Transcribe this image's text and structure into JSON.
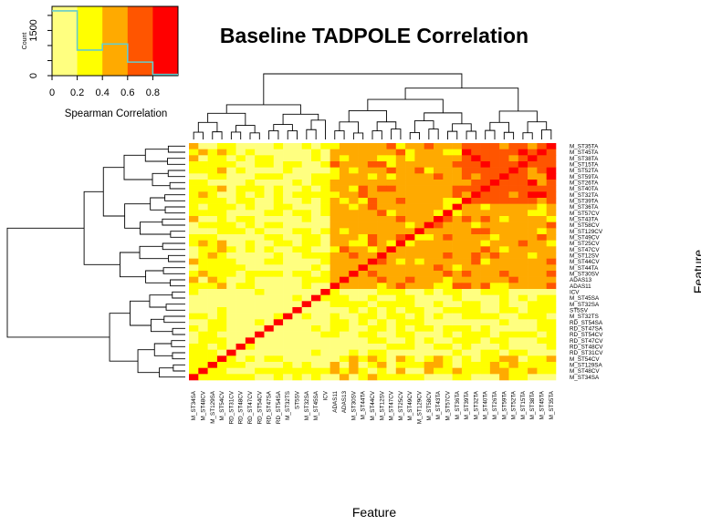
{
  "chart_data": {
    "type": "heatmap",
    "title": "Baseline TADPOLE Correlation",
    "xlabel": "Feature",
    "ylabel": "Feature",
    "column_tick_labels": [
      "M_ST34SA",
      "M_ST48CV",
      "M_ST129SA",
      "M_ST54CV",
      "RD_ST31CV",
      "RD_ST48CV",
      "RD_ST47CV",
      "RD_ST54CV",
      "RD_ST47SA",
      "RD_ST54SA",
      "M_ST32TS",
      "ST5SV",
      "M_ST32SA",
      "M_ST45SA",
      "ICV",
      "ADAS11",
      "ADAS13",
      "M_ST30SV",
      "M_ST44TA",
      "M_ST44CV",
      "M_ST12SV",
      "M_ST47CV",
      "M_ST25CV",
      "M_ST49CV",
      "M_ST129CV",
      "M_ST58CV",
      "M_ST43TA",
      "M_ST57CV",
      "M_ST36TA",
      "M_ST39TA",
      "M_ST32TA",
      "M_ST40TA",
      "M_ST26TA",
      "M_ST59TA",
      "M_ST52TA",
      "M_ST15TA",
      "M_ST38TA",
      "M_ST45TA",
      "M_ST35TA"
    ],
    "row_tick_labels": [
      "M_ST35TA",
      "M_ST45TA",
      "M_ST38TA",
      "M_ST15TA",
      "M_ST52TA",
      "M_ST59TA",
      "M_ST26TA",
      "M_ST40TA",
      "M_ST32TA",
      "M_ST39TA",
      "M_ST36TA",
      "M_ST57CV",
      "M_ST43TA",
      "M_ST58CV",
      "M_ST129CV",
      "M_ST49CV",
      "M_ST25CV",
      "M_ST47CV",
      "M_ST12SV",
      "M_ST44CV",
      "M_ST44TA",
      "M_ST30SV",
      "ADAS13",
      "ADAS11",
      "ICV",
      "M_ST45SA",
      "M_ST32SA",
      "ST5SV",
      "M_ST32TS",
      "RD_ST54SA",
      "RD_ST47SA",
      "RD_ST54CV",
      "RD_ST47CV",
      "RD_ST48CV",
      "RD_ST31CV",
      "M_ST54CV",
      "M_ST129SA",
      "M_ST48CV",
      "M_ST34SA"
    ],
    "legend": {
      "title": "Spearman Correlation",
      "count_label": "Count",
      "x_ticks": [
        "0",
        "0.2",
        "0.4",
        "0.6",
        "0.8"
      ],
      "y_ticks": [
        "0",
        "1500"
      ],
      "bins": [
        {
          "from": 0.0,
          "to": 0.2,
          "color": "#ffff80"
        },
        {
          "from": 0.2,
          "to": 0.4,
          "color": "#ffff00"
        },
        {
          "from": 0.4,
          "to": 0.6,
          "color": "#ffaa00"
        },
        {
          "from": 0.6,
          "to": 0.8,
          "color": "#ff5500"
        },
        {
          "from": 0.8,
          "to": 1.0,
          "color": "#ff0000"
        }
      ],
      "histogram_line": [
        {
          "x": 0.0,
          "count": 2150
        },
        {
          "x": 0.2,
          "count": 850
        },
        {
          "x": 0.4,
          "count": 1050
        },
        {
          "x": 0.6,
          "count": 450
        },
        {
          "x": 0.8,
          "count": 40
        }
      ],
      "count_max": 2300,
      "histogram_color": "#66cccc"
    },
    "clusters": {
      "A": [
        "ICV",
        "M_ST45SA",
        "M_ST32SA",
        "ST5SV",
        "M_ST32TS",
        "RD_ST54SA",
        "RD_ST47SA",
        "RD_ST54CV",
        "RD_ST47CV",
        "RD_ST48CV",
        "RD_ST31CV"
      ],
      "B": [
        "M_ST54CV",
        "M_ST129SA",
        "M_ST48CV",
        "M_ST34SA"
      ],
      "C": [
        "M_ST35TA",
        "M_ST45TA",
        "M_ST38TA",
        "M_ST15TA",
        "M_ST52TA",
        "M_ST59TA",
        "M_ST26TA",
        "M_ST40TA",
        "M_ST32TA",
        "M_ST39TA",
        "M_ST36TA",
        "M_ST57CV",
        "M_ST43TA",
        "M_ST58CV",
        "M_ST129CV",
        "M_ST49CV",
        "M_ST25CV",
        "M_ST47CV",
        "M_ST12SV",
        "M_ST44CV",
        "M_ST44TA",
        "M_ST30SV",
        "ADAS13",
        "ADAS11"
      ]
    },
    "cluster_bin_levels": {
      "A-A": 0,
      "B-B": 1,
      "A-B": 1,
      "A-C": 1,
      "B-C": 1,
      "C-C": 2,
      "C-C-core": 3,
      "diagonal": 4
    }
  }
}
